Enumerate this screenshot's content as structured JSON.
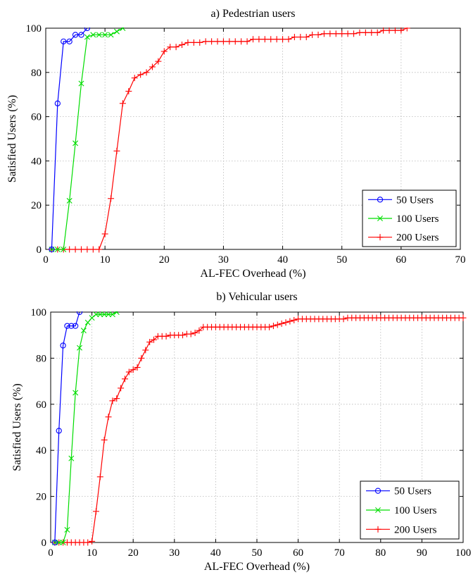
{
  "chart_data": [
    {
      "type": "line",
      "title": "a) Pedestrian users",
      "xlabel": "AL-FEC Overhead (%)",
      "ylabel": "Satisfied Users (%)",
      "xlim": [
        0,
        70
      ],
      "ylim": [
        0,
        100
      ],
      "xticks": [
        0,
        10,
        20,
        30,
        40,
        50,
        60,
        70
      ],
      "yticks": [
        0,
        20,
        40,
        60,
        80,
        100
      ],
      "grid": true,
      "legend_position": "bottom-right",
      "series": [
        {
          "name": "50 Users",
          "color": "#0000ff",
          "marker": "circle",
          "x": [
            1,
            2,
            3,
            4,
            5,
            6,
            7
          ],
          "y": [
            0,
            66,
            94,
            94,
            97,
            97,
            100
          ]
        },
        {
          "name": "100 Users",
          "color": "#00dd00",
          "marker": "x",
          "x": [
            1,
            2,
            3,
            4,
            5,
            6,
            7,
            8,
            9,
            10,
            11,
            12,
            13
          ],
          "y": [
            0,
            0,
            0,
            22,
            48,
            75,
            96,
            97,
            97,
            97,
            97,
            98.5,
            100
          ]
        },
        {
          "name": "200 Users",
          "color": "#ff0000",
          "marker": "plus",
          "x": [
            1,
            2,
            3,
            4,
            5,
            6,
            7,
            8,
            9,
            10,
            11,
            12,
            13,
            14,
            15,
            16,
            17,
            18,
            19,
            20,
            21,
            22,
            23,
            24,
            25,
            26,
            27,
            28,
            29,
            30,
            31,
            32,
            33,
            34,
            35,
            36,
            37,
            38,
            39,
            40,
            41,
            42,
            43,
            44,
            45,
            46,
            47,
            48,
            49,
            50,
            51,
            52,
            53,
            54,
            55,
            56,
            57,
            58,
            59,
            60,
            61
          ],
          "y": [
            0,
            0,
            0,
            0,
            0,
            0,
            0,
            0,
            0,
            7,
            23,
            44.5,
            66,
            71.5,
            77.5,
            79,
            80,
            82.5,
            85,
            89.5,
            91.5,
            91.5,
            92.5,
            93.5,
            93.5,
            93.5,
            94,
            94,
            94,
            94,
            94,
            94,
            94,
            94,
            95,
            95,
            95,
            95,
            95,
            95,
            95,
            96,
            96,
            96,
            97,
            97,
            97.5,
            97.5,
            97.5,
            97.5,
            97.5,
            97.5,
            98,
            98,
            98,
            98,
            99,
            99,
            99,
            99,
            100
          ]
        }
      ]
    },
    {
      "type": "line",
      "title": "b) Vehicular users",
      "xlabel": "AL-FEC Overhead (%)",
      "ylabel": "Satisfied Users (%)",
      "xlim": [
        0,
        100
      ],
      "ylim": [
        0,
        100
      ],
      "xticks": [
        0,
        10,
        20,
        30,
        40,
        50,
        60,
        70,
        80,
        90,
        100
      ],
      "yticks": [
        0,
        20,
        40,
        60,
        80,
        100
      ],
      "grid": true,
      "legend_position": "bottom-right",
      "series": [
        {
          "name": "50 Users",
          "color": "#0000ff",
          "marker": "circle",
          "x": [
            1,
            2,
            3,
            4,
            5,
            6,
            7
          ],
          "y": [
            0,
            48.5,
            85.5,
            94,
            94,
            94,
            100
          ]
        },
        {
          "name": "100 Users",
          "color": "#00dd00",
          "marker": "x",
          "x": [
            1,
            2,
            3,
            4,
            5,
            6,
            7,
            8,
            9,
            10,
            11,
            12,
            13,
            14,
            15,
            16
          ],
          "y": [
            0,
            0,
            0,
            5.5,
            36.5,
            65,
            84.5,
            92,
            95.5,
            97.5,
            99,
            99,
            99,
            99,
            99,
            100
          ]
        },
        {
          "name": "200 Users",
          "color": "#ff0000",
          "marker": "plus",
          "x": [
            1,
            2,
            3,
            4,
            5,
            6,
            7,
            8,
            9,
            10,
            11,
            12,
            13,
            14,
            15,
            16,
            17,
            18,
            19,
            20,
            21,
            22,
            23,
            24,
            25,
            26,
            27,
            28,
            29,
            30,
            31,
            32,
            33,
            34,
            35,
            36,
            37,
            38,
            39,
            40,
            41,
            42,
            43,
            44,
            45,
            46,
            47,
            48,
            49,
            50,
            51,
            52,
            53,
            54,
            55,
            56,
            57,
            58,
            59,
            60,
            61,
            62,
            63,
            64,
            65,
            66,
            67,
            68,
            69,
            70,
            71,
            72,
            73,
            74,
            75,
            76,
            77,
            78,
            79,
            80,
            81,
            82,
            83,
            84,
            85,
            86,
            87,
            88,
            89,
            90,
            91,
            92,
            93,
            94,
            95,
            96,
            97,
            98,
            99,
            100
          ],
          "y": [
            0,
            0,
            0,
            0,
            0,
            0,
            0,
            0,
            0,
            0.5,
            13.5,
            28.5,
            44.5,
            54.5,
            61.5,
            62.5,
            67,
            71,
            74,
            75,
            76,
            80,
            83.5,
            87,
            88,
            89.5,
            89.5,
            89.5,
            90,
            90,
            90,
            90,
            90.5,
            90.5,
            91,
            92,
            93.5,
            93.5,
            93.5,
            93.5,
            93.5,
            93.5,
            93.5,
            93.5,
            93.5,
            93.5,
            93.5,
            93.5,
            93.5,
            93.5,
            93.5,
            93.5,
            93.5,
            94,
            94.5,
            95,
            95.5,
            96,
            96.5,
            97,
            97,
            97,
            97,
            97,
            97,
            97,
            97,
            97,
            97,
            97,
            97,
            97.5,
            97.5,
            97.5,
            97.5,
            97.5,
            97.5,
            97.5,
            97.5,
            97.5,
            97.5,
            97.5,
            97.5,
            97.5,
            97.5,
            97.5,
            97.5,
            97.5,
            97.5,
            97.5,
            97.5,
            97.5,
            97.5,
            97.5,
            97.5,
            97.5,
            97.5,
            97.5,
            97.5,
            97.5
          ]
        }
      ]
    }
  ]
}
